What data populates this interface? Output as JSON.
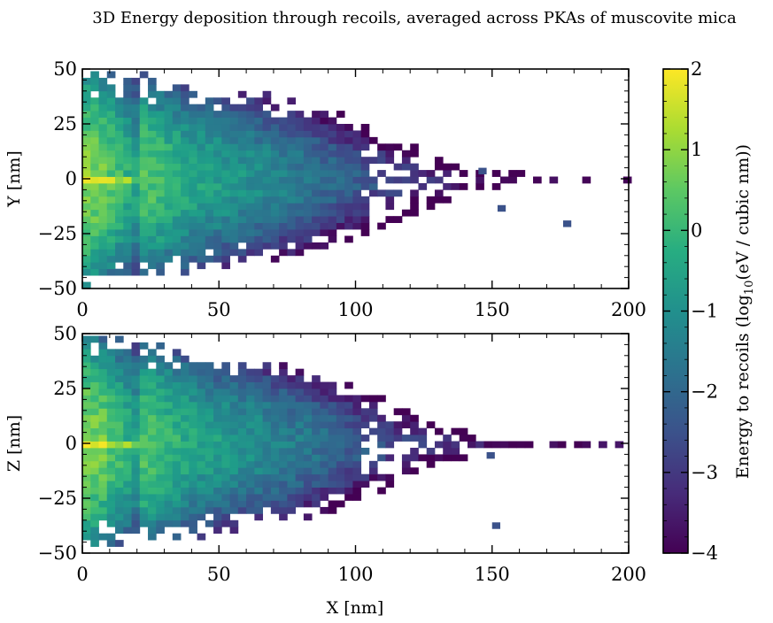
{
  "figure": {
    "title": "3D Energy deposition through recoils, averaged across PKAs of muscovite mica",
    "xlabel": "X [nm]",
    "colorbar_label_main": "Energy to recoils (log",
    "colorbar_label_sub": "10",
    "colorbar_label_tail": "(eV / cubic nm))"
  },
  "chart_data": [
    {
      "type": "heatmap",
      "panel": "top",
      "xlabel": "",
      "ylabel": "Y [nm]",
      "xlim": [
        0,
        200
      ],
      "ylim": [
        -50,
        50
      ],
      "xticks": [
        0,
        50,
        100,
        150,
        200
      ],
      "yticks": [
        -50,
        -25,
        0,
        25,
        50
      ],
      "bin_size_nm": 1,
      "colorscale": "viridis",
      "value_range": [
        -4,
        2
      ],
      "peak": {
        "x": [
          0,
          15
        ],
        "y": 0,
        "value": 2
      },
      "core_extent_x": 100,
      "profile_x": [
        0,
        5,
        10,
        20,
        40,
        60,
        80,
        100,
        120,
        140,
        175
      ],
      "profile_peak_value": [
        2,
        1.9,
        1.5,
        0.4,
        -0.5,
        -1.0,
        -1.6,
        -2.3,
        -3.0,
        -3.5,
        -3.5
      ],
      "profile_half_width": [
        50,
        45,
        45,
        45,
        40,
        37,
        33,
        25,
        15,
        5,
        1
      ],
      "outlier_points": [
        {
          "x": 152,
          "y": -12
        },
        {
          "x": 176,
          "y": -19
        },
        {
          "x": 145,
          "y": 5
        }
      ]
    },
    {
      "type": "heatmap",
      "panel": "bottom",
      "xlabel": "X [nm]",
      "ylabel": "Z [nm]",
      "xlim": [
        0,
        200
      ],
      "ylim": [
        -50,
        50
      ],
      "xticks": [
        0,
        50,
        100,
        150,
        200
      ],
      "yticks": [
        -50,
        -25,
        0,
        25,
        50
      ],
      "bin_size_nm": 1,
      "colorscale": "viridis",
      "value_range": [
        -4,
        2
      ],
      "peak": {
        "x": [
          0,
          15
        ],
        "y": 0,
        "value": 2
      },
      "core_extent_x": 100,
      "profile_x": [
        0,
        5,
        10,
        20,
        40,
        60,
        80,
        100,
        120,
        140,
        150
      ],
      "profile_peak_value": [
        2,
        1.9,
        1.5,
        0.4,
        -0.5,
        -1.0,
        -1.6,
        -2.3,
        -3.0,
        -3.5,
        -3.5
      ],
      "profile_half_width": [
        50,
        45,
        45,
        45,
        40,
        37,
        33,
        25,
        15,
        5,
        1
      ],
      "outlier_points": [
        {
          "x": 150,
          "y": -36
        },
        {
          "x": 148,
          "y": -4
        }
      ]
    },
    {
      "type": "colorbar",
      "colorscale": "viridis",
      "range": [
        -4,
        2
      ],
      "ticks": [
        2,
        1,
        0,
        -1,
        -2,
        -3,
        -4
      ],
      "tick_labels": [
        "2",
        "1",
        "0",
        "−1",
        "−2",
        "−3",
        "−4"
      ],
      "label": "Energy to recoils (log10(eV / cubic nm))"
    }
  ]
}
